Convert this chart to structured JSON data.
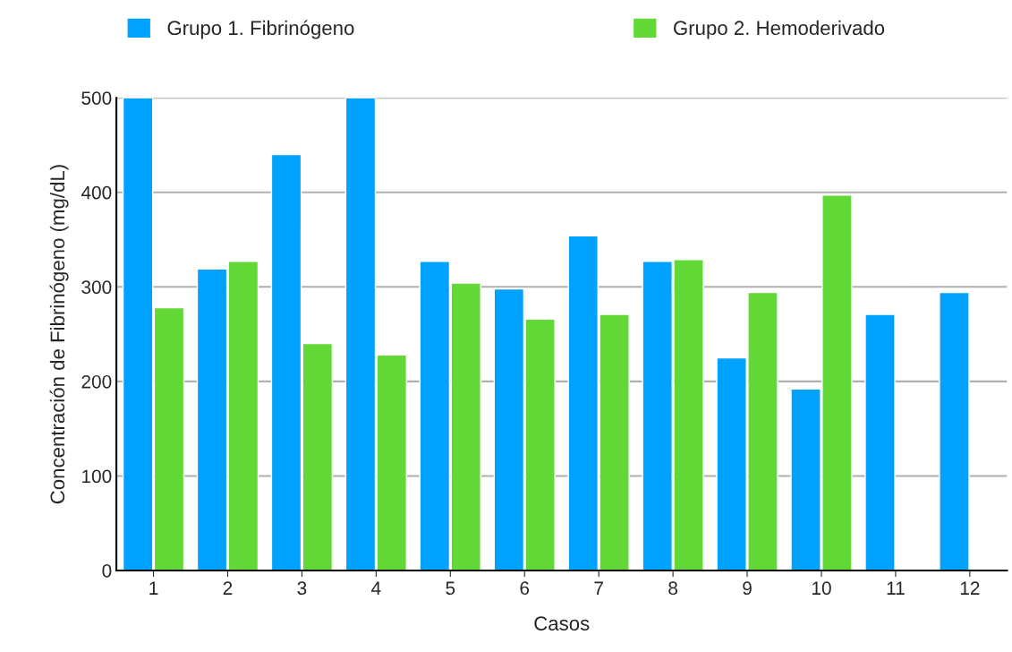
{
  "chart_data": {
    "type": "bar",
    "xlabel": "Casos",
    "ylabel": "Concentración de Fibrinógeno (mg/dL)",
    "categories": [
      "1",
      "2",
      "3",
      "4",
      "5",
      "6",
      "7",
      "8",
      "9",
      "10",
      "11",
      "12"
    ],
    "series": [
      {
        "name": "Grupo 1. Fibrinógeno",
        "color": "#00a2ff",
        "values": [
          500,
          319,
          440,
          500,
          327,
          298,
          354,
          327,
          225,
          192,
          271,
          294
        ]
      },
      {
        "name": "Grupo 2. Hemoderivado",
        "color": "#61d836",
        "values": [
          278,
          327,
          240,
          228,
          304,
          266,
          271,
          329,
          294,
          397,
          null,
          null
        ]
      }
    ],
    "ylim": [
      0,
      500
    ],
    "yticks": [
      0,
      100,
      200,
      300,
      400,
      500
    ],
    "grid": "y",
    "legend": "top"
  }
}
